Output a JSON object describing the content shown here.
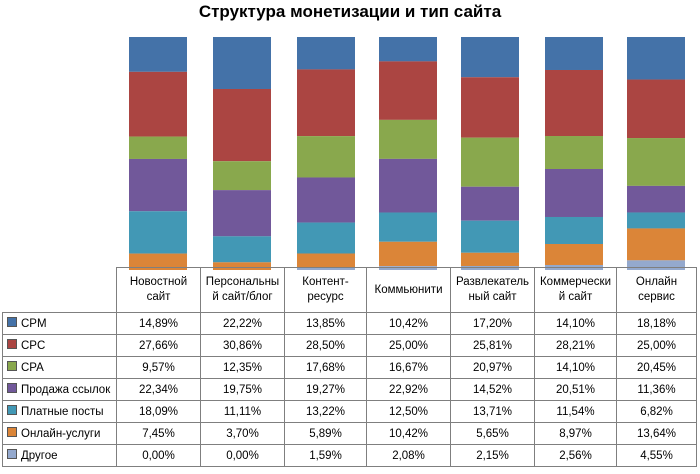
{
  "chart_data": {
    "type": "stacked_bar_100",
    "title": "Структура монетизации и тип сайта",
    "categories": [
      [
        "Новостной",
        "сайт"
      ],
      [
        "Персональны",
        "й сайт/блог"
      ],
      [
        "Контент-",
        "ресурс"
      ],
      [
        "Коммьюнити"
      ],
      [
        "Развлекатель",
        "ный сайт"
      ],
      [
        "Коммерчески",
        "й сайт"
      ],
      [
        "Онлайн",
        "сервис"
      ]
    ],
    "series": [
      {
        "name": "CPM",
        "color": "#4472a8",
        "values": [
          14.89,
          22.22,
          13.85,
          10.42,
          17.2,
          14.1,
          18.18
        ],
        "labels": [
          "14,89%",
          "22,22%",
          "13,85%",
          "10,42%",
          "17,20%",
          "14,10%",
          "18,18%"
        ]
      },
      {
        "name": "CPC",
        "color": "#ab4542",
        "values": [
          27.66,
          30.86,
          28.5,
          25.0,
          25.81,
          28.21,
          25.0
        ],
        "labels": [
          "27,66%",
          "30,86%",
          "28,50%",
          "25,00%",
          "25,81%",
          "28,21%",
          "25,00%"
        ]
      },
      {
        "name": "CPA",
        "color": "#89a84d",
        "values": [
          9.57,
          12.35,
          17.68,
          16.67,
          20.97,
          14.1,
          20.45
        ],
        "labels": [
          "9,57%",
          "12,35%",
          "17,68%",
          "16,67%",
          "20,97%",
          "14,10%",
          "20,45%"
        ]
      },
      {
        "name": "Продажа ссылок",
        "color": "#71589a",
        "values": [
          22.34,
          19.75,
          19.27,
          22.92,
          14.52,
          20.51,
          11.36
        ],
        "labels": [
          "22,34%",
          "19,75%",
          "19,27%",
          "22,92%",
          "14,52%",
          "20,51%",
          "11,36%"
        ]
      },
      {
        "name": "Платные посты",
        "color": "#4298b5",
        "values": [
          18.09,
          11.11,
          13.22,
          12.5,
          13.71,
          11.54,
          6.82
        ],
        "labels": [
          "18,09%",
          "11,11%",
          "13,22%",
          "12,50%",
          "13,71%",
          "11,54%",
          "6,82%"
        ]
      },
      {
        "name": "Онлайн-услуги",
        "color": "#db8538",
        "values": [
          7.45,
          3.7,
          5.89,
          10.42,
          5.65,
          8.97,
          13.64
        ],
        "labels": [
          "7,45%",
          "3,70%",
          "5,89%",
          "10,42%",
          "5,65%",
          "8,97%",
          "13,64%"
        ]
      },
      {
        "name": "Другое",
        "color": "#94a9ce",
        "values": [
          0.0,
          0.0,
          1.59,
          2.08,
          2.15,
          2.56,
          4.55
        ],
        "labels": [
          "0,00%",
          "0,00%",
          "1,59%",
          "2,08%",
          "2,15%",
          "2,56%",
          "4,55%"
        ]
      }
    ],
    "stacking_order": "CPM on top, Другое at bottom",
    "ylim": [
      0,
      100
    ],
    "legend": "data-table"
  }
}
